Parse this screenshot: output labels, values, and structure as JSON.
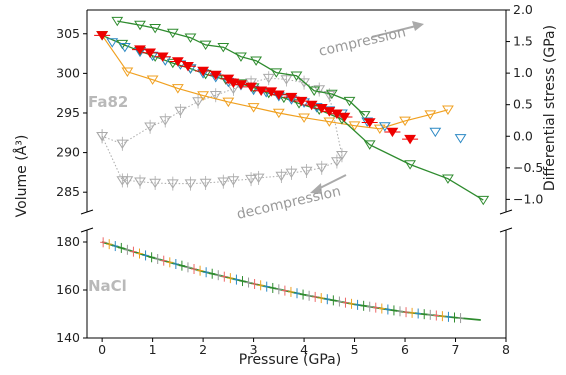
{
  "chart_data": [
    {
      "type": "scatter",
      "panel": "top",
      "panel_label": "Fa82",
      "xlim": [
        -0.3,
        8
      ],
      "ylim_left": [
        282.5,
        308
      ],
      "ylim_right": [
        -1.2,
        2.0
      ],
      "ylabel_left": "Volume (Å³)",
      "ylabel_right": "Differential stress (GPa)",
      "yticks_left": [
        "285",
        "290",
        "295",
        "300",
        "305"
      ],
      "yticks_right": [
        "−1.0",
        "−0.5",
        "0.0",
        "0.5",
        "1.0",
        "1.5",
        "2.0"
      ],
      "annotations": {
        "compression": "compression",
        "decompression": "decompression"
      },
      "series": [
        {
          "role": "volume (filled)",
          "axis": "left",
          "color": "#ee0000",
          "x": [
            0,
            0.75,
            0.95,
            1.2,
            1.5,
            1.7,
            2.0,
            2.25,
            2.5,
            2.6,
            2.75,
            2.95,
            3.15,
            3.35,
            3.5,
            3.75,
            3.95,
            4.15,
            4.35,
            4.5,
            4.65,
            4.8,
            5.3,
            5.75,
            6.1
          ],
          "y": [
            304.8,
            303.0,
            302.6,
            302.1,
            301.5,
            300.9,
            300.3,
            299.8,
            299.3,
            298.8,
            298.6,
            298.3,
            297.8,
            297.7,
            297.3,
            297.0,
            296.5,
            296.0,
            295.6,
            295.2,
            294.9,
            294.5,
            293.8,
            292.6,
            291.7
          ]
        },
        {
          "role": "volume (open, blue)",
          "axis": "left",
          "color": "#2a88c4",
          "x": [
            0.2,
            0.45,
            0.75,
            1.0,
            1.25,
            1.55,
            1.75,
            2.0,
            2.25,
            2.5,
            2.75,
            3.0,
            3.25,
            3.5,
            3.75,
            4.0,
            4.25,
            4.5,
            4.75,
            5.25,
            5.6,
            6.6,
            7.1
          ],
          "y": [
            303.9,
            303.3,
            302.7,
            302.2,
            301.6,
            301.1,
            300.6,
            300.0,
            299.5,
            298.9,
            298.5,
            297.9,
            297.6,
            297.1,
            296.7,
            296.3,
            295.7,
            295.3,
            294.9,
            293.9,
            293.3,
            292.6,
            291.8
          ]
        },
        {
          "role": "volume (compression, green)",
          "axis": "left",
          "color": "#2e8b2e",
          "x": [
            0,
            0.4,
            0.75,
            1.05,
            1.4,
            1.75,
            2.05,
            2.45,
            2.75,
            3.0,
            3.3,
            3.6,
            3.9,
            4.3,
            4.75,
            5.3,
            6.1,
            6.85,
            7.55
          ],
          "y": [
            304.8,
            303.7,
            302.8,
            302.1,
            301.3,
            300.6,
            299.9,
            299.2,
            298.7,
            298.2,
            297.5,
            296.9,
            296.2,
            295.4,
            294.2,
            291.0,
            288.5,
            286.7,
            284.0
          ]
        },
        {
          "role": "volume (decompression, green)",
          "axis": "left",
          "color": "#2e8b2e",
          "x": [
            0.3,
            0.75,
            1.05,
            1.4,
            1.75,
            2.05,
            2.4,
            2.75,
            3.05,
            3.45,
            3.85,
            4.2,
            4.55,
            4.9,
            5.2
          ],
          "y": [
            306.6,
            306.1,
            305.7,
            305.1,
            304.5,
            303.6,
            303.3,
            302.1,
            301.6,
            300.1,
            299.7,
            297.8,
            297.4,
            296.5,
            294.7
          ]
        },
        {
          "role": "volume (orange)",
          "axis": "left",
          "color": "#f0a020",
          "x": [
            0,
            0.5,
            1.0,
            1.5,
            2.0,
            2.5,
            3.0,
            3.5,
            4.0,
            4.5,
            5.0,
            5.5,
            6.0,
            6.5,
            6.85
          ],
          "y": [
            304.8,
            300.2,
            299.2,
            298.1,
            297.2,
            296.4,
            295.7,
            295.0,
            294.4,
            293.9,
            293.4,
            293.0,
            294.0,
            294.8,
            295.4
          ]
        },
        {
          "role": "differential stress (grey)",
          "axis": "right",
          "color": "#aaaaaa",
          "x": [
            0,
            0.4,
            0.5,
            0.75,
            1.05,
            1.4,
            1.75,
            2.05,
            2.4,
            2.6,
            2.95,
            3.1,
            3.55,
            3.75,
            4.05,
            4.35,
            4.65,
            4.75,
            4.5,
            4.3,
            4.0,
            3.65,
            3.3,
            2.95,
            2.6,
            2.25,
            1.9,
            1.55,
            1.25,
            0.95,
            0.4,
            0
          ],
          "y": [
            0.0,
            -0.7,
            -0.7,
            -0.72,
            -0.74,
            -0.75,
            -0.75,
            -0.74,
            -0.72,
            -0.7,
            -0.68,
            -0.66,
            -0.63,
            -0.58,
            -0.55,
            -0.5,
            -0.4,
            -0.3,
            0.65,
            0.74,
            0.85,
            0.9,
            0.92,
            0.85,
            0.75,
            0.65,
            0.55,
            0.4,
            0.25,
            0.15,
            -0.12,
            0.0
          ]
        }
      ]
    },
    {
      "type": "scatter",
      "panel": "bottom",
      "panel_label": "NaCl",
      "xlim": [
        -0.3,
        8
      ],
      "ylim": [
        140,
        185
      ],
      "xlabel": "Pressure (GPa)",
      "xticks": [
        "0",
        "1",
        "2",
        "3",
        "4",
        "5",
        "6",
        "7",
        "8"
      ],
      "yticks": [
        "140",
        "160",
        "180"
      ],
      "fit": {
        "x": [
          0,
          1,
          2,
          3,
          4,
          5,
          6,
          7,
          7.5
        ],
        "y": [
          180.0,
          173.5,
          167.7,
          162.6,
          158.0,
          154.0,
          150.8,
          148.5,
          147.5
        ]
      }
    }
  ]
}
